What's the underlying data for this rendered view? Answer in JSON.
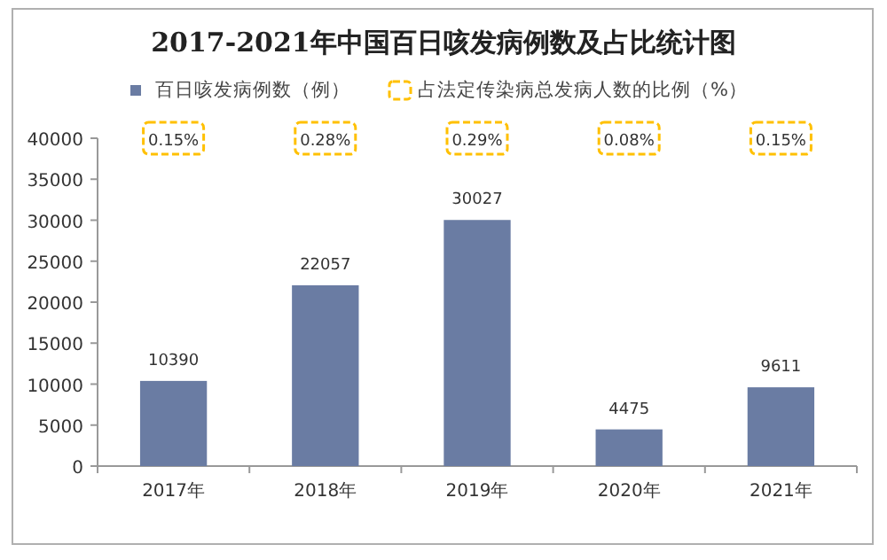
{
  "chart_data": [
    {
      "type": "bar",
      "title": "2017-2021年中国百日咳发病例数及占比统计图",
      "categories": [
        "2017年",
        "2018年",
        "2019年",
        "2020年",
        "2021年"
      ],
      "series": [
        {
          "name": "百日咳发病例数（例）",
          "color": "#6a7ca3",
          "values": [
            10390,
            22057,
            30027,
            4475,
            9611
          ]
        }
      ],
      "data_labels": true,
      "ylim": [
        0,
        40000
      ],
      "yticks": [
        0,
        5000,
        10000,
        15000,
        20000,
        25000,
        30000,
        35000,
        40000
      ],
      "legend": "top"
    },
    {
      "type": "other",
      "categories": [
        null,
        null,
        null,
        null,
        null
      ],
      "series": [
        {
          "name": "占法定传染病总发病人数的比例（%）",
          "color": "#ffc000",
          "line_style": "dashed",
          "values": [
            0.15,
            0.28,
            0.29,
            0.08,
            0.15
          ],
          "value_labels": [
            "0.15%",
            "0.28%",
            "0.29%",
            "0.08%",
            "0.15%"
          ]
        }
      ],
      "legend": "top"
    }
  ]
}
